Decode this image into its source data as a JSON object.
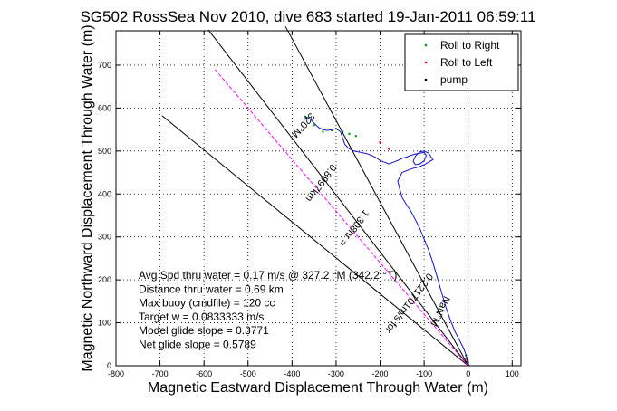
{
  "chart_data": {
    "type": "line",
    "title": "SG502 RossSea Nov 2010, dive 683 started 19-Jan-2011 06:59:11",
    "xlabel": "Magnetic Eastward Displacement Through Water (m)",
    "ylabel": "Magnetic Northward Displacement Through Water (m)",
    "xlim": [
      -800,
      120
    ],
    "ylim": [
      0,
      780
    ],
    "xticks": [
      -800,
      -700,
      -600,
      -500,
      -400,
      -300,
      -200,
      -100,
      0,
      100
    ],
    "yticks": [
      0,
      100,
      200,
      300,
      400,
      500,
      600,
      700
    ],
    "grid": true,
    "legend_position": "top-right",
    "legend": [
      {
        "label": "Roll to Right",
        "color": "#00a000"
      },
      {
        "label": "Roll to Left",
        "color": "#ff0000"
      },
      {
        "label": "pump",
        "color": "#000000"
      }
    ],
    "series": [
      {
        "name": "Roll to Right",
        "color": "#00a000",
        "marker": "dot",
        "x": [
          0,
          -1,
          -3,
          -5,
          -255,
          -270,
          -285,
          -300,
          -310,
          -330,
          -350,
          -370
        ],
        "y": [
          8,
          12,
          18,
          24,
          535,
          540,
          545,
          552,
          548,
          545,
          560,
          580
        ]
      },
      {
        "name": "Roll to Left",
        "color": "#ff0000",
        "marker": "dot",
        "x": [
          -2,
          -4,
          -200,
          -180
        ],
        "y": [
          10,
          16,
          520,
          505
        ]
      },
      {
        "name": "pump",
        "color": "#000000",
        "marker": "dot",
        "x": [
          0,
          -1
        ],
        "y": [
          2,
          4
        ]
      },
      {
        "name": "track",
        "color": "#1010d0",
        "style": "solid",
        "x": [
          -370,
          -360,
          -350,
          -340,
          -330,
          -320,
          -310,
          -300,
          -290,
          -285,
          -280,
          -270,
          -260,
          -250,
          -240,
          -230,
          -220,
          -210,
          -200,
          -190,
          -180,
          -170,
          -160,
          -150,
          -140,
          -130,
          -120,
          -110,
          -100,
          -95,
          -100,
          -110,
          -120,
          -125,
          -120,
          -110,
          -100,
          -90,
          -80,
          -100,
          -115,
          -130,
          -150,
          -160,
          -155,
          -150,
          -140,
          -130,
          -120,
          -110,
          -100,
          -90,
          -80,
          -70,
          -60,
          -50,
          -40,
          -30,
          -20,
          -10,
          -5,
          -2,
          0
        ],
        "y": [
          580,
          575,
          565,
          555,
          550,
          548,
          550,
          552,
          545,
          530,
          515,
          505,
          500,
          498,
          496,
          494,
          490,
          485,
          478,
          474,
          470,
          474,
          478,
          483,
          486,
          490,
          493,
          495,
          497,
          490,
          477,
          470,
          468,
          476,
          488,
          498,
          500,
          495,
          480,
          468,
          462,
          458,
          450,
          430,
          410,
          392,
          375,
          360,
          340,
          320,
          295,
          270,
          240,
          205,
          170,
          135,
          105,
          80,
          60,
          40,
          25,
          12,
          5
        ]
      },
      {
        "name": "heading-line",
        "color": "#000000",
        "style": "solid",
        "x": [
          0,
          -415
        ],
        "y": [
          0,
          790
        ]
      },
      {
        "name": "course-line-1",
        "color": "#000000",
        "style": "solid",
        "x": [
          0,
          -695
        ],
        "y": [
          0,
          582
        ]
      },
      {
        "name": "course-line-2",
        "color": "#000000",
        "style": "solid",
        "x": [
          0,
          -590
        ],
        "y": [
          0,
          782
        ]
      },
      {
        "name": "sat-line",
        "color": "#ff00ff",
        "style": "dashed",
        "x": [
          0,
          -575
        ],
        "y": [
          0,
          690
        ]
      }
    ],
    "annotations": [
      {
        "text": "Avg Spd thru water =  0.17 m/s @ 327.2 °M (342.2 °T)"
      },
      {
        "text": "Distance thru water =  0.69 km"
      },
      {
        "text": "Max buoy (cmdfile) = 120 cc"
      },
      {
        "text": "Target w = 0.0833333 m/s"
      },
      {
        "text": "Model glide slope = 0.3771"
      },
      {
        "text": "Net glide slope = 0.5789"
      },
      {
        "text": "320°M",
        "x": -380,
        "y": 565,
        "rotation": 132
      },
      {
        "text": "0.8997km",
        "x": -340,
        "y": 430,
        "rotation": 127
      },
      {
        "text": "1.308hr =",
        "x": -265,
        "y": 325,
        "rotation": 127
      },
      {
        "text": "0.221701m/s for",
        "x": -140,
        "y": 150,
        "rotation": 127
      },
      {
        "text": "NaN°M",
        "x": -70,
        "y": 130,
        "rotation": 115
      }
    ]
  }
}
